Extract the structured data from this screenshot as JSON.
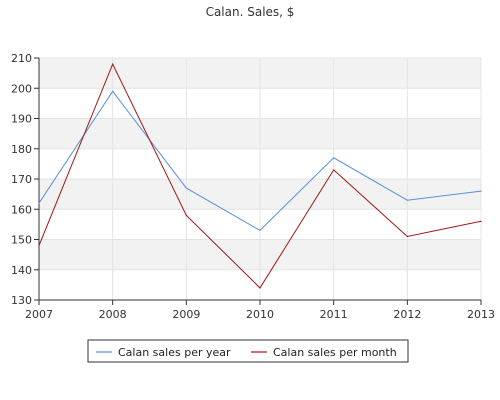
{
  "chart_data": {
    "type": "line",
    "title": "Calan. Sales, $",
    "xlabel": "",
    "ylabel": "",
    "x": [
      "2007",
      "2008",
      "2009",
      "2010",
      "2011",
      "2012",
      "2013"
    ],
    "xlim": [
      2007,
      2013
    ],
    "ylim": [
      130,
      210
    ],
    "yticks": [
      130,
      140,
      150,
      160,
      170,
      180,
      190,
      200,
      210
    ],
    "grid": true,
    "legend_position": "bottom-center",
    "series": [
      {
        "name": "Calan sales per year",
        "color": "#5b8fd9",
        "values": [
          162,
          199,
          167,
          153,
          177,
          163,
          166
        ]
      },
      {
        "name": "Calan sales per month",
        "color": "#a31515",
        "values": [
          148,
          208,
          158,
          134,
          173,
          151,
          156
        ]
      }
    ]
  }
}
